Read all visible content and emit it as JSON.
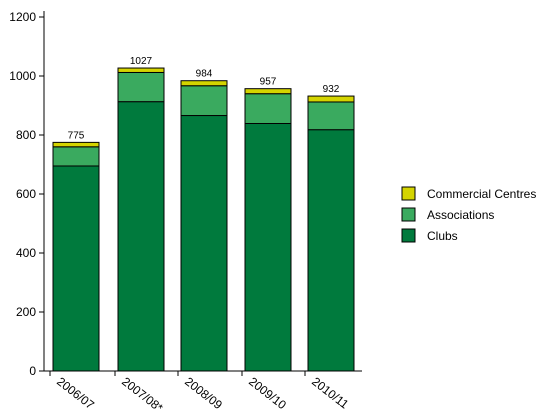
{
  "chart_data": {
    "type": "bar",
    "stacked": true,
    "categories": [
      "2006/07",
      "2007/08*",
      "2008/09",
      "2009/10",
      "2010/11"
    ],
    "series": [
      {
        "name": "Clubs",
        "color": "#007a3d",
        "values": [
          695,
          913,
          866,
          839,
          818
        ]
      },
      {
        "name": "Associations",
        "color": "#3aaa5f",
        "values": [
          65,
          99,
          101,
          101,
          94
        ]
      },
      {
        "name": "Commercial Centres",
        "color": "#d4d400",
        "values": [
          15,
          15,
          17,
          17,
          20
        ]
      }
    ],
    "totals": [
      775,
      1027,
      984,
      957,
      932
    ],
    "yticks": [
      0,
      200,
      400,
      600,
      800,
      1000,
      1200
    ],
    "ylim": [
      0,
      1200
    ],
    "legend_position": "right",
    "legend_order": [
      "Commercial Centres",
      "Associations",
      "Clubs"
    ]
  }
}
